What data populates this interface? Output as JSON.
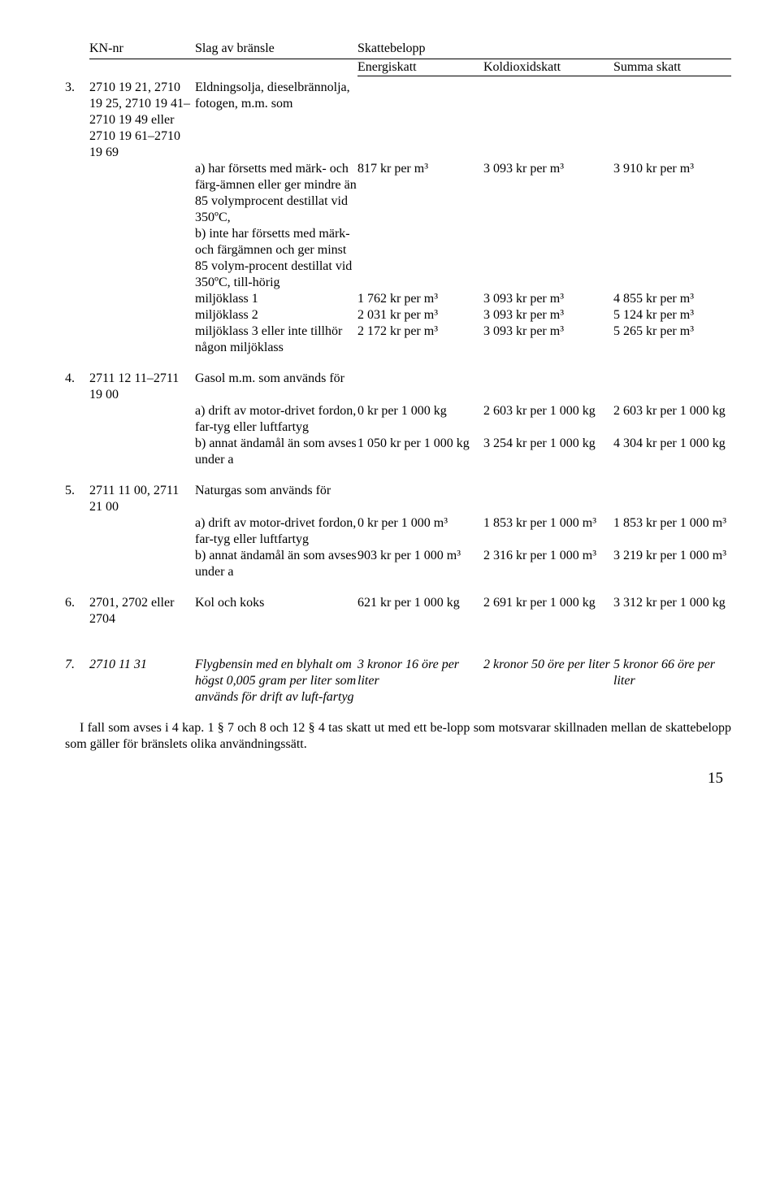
{
  "headers": {
    "kn": "KN-nr",
    "slag": "Slag av bränsle",
    "skattebelopp": "Skattebelopp",
    "energiskatt": "Energiskatt",
    "koldioxidskatt": "Koldioxidskatt",
    "summa": "Summa skatt"
  },
  "rows": {
    "r3": {
      "nr": "3.",
      "kn": "2710 19 21, 2710 19 25, 2710 19 41–2710 19 49 eller 2710 19 61–2710 19 69",
      "slag": "Eldningsolja, dieselbrännolja, fotogen, m.m. som",
      "sub": [
        {
          "slag": "a) har försetts med märk- och färg-ämnen eller ger mindre än 85 volymprocent destillat vid 350ºC,",
          "e": "817 kr per m³",
          "k": "3 093 kr per m³",
          "s": "3 910 kr per m³"
        },
        {
          "slag": "b) inte har försetts med märk- och färgämnen och ger minst 85 volym-procent destillat vid 350ºC, till-hörig",
          "e": "",
          "k": "",
          "s": ""
        },
        {
          "slag": "miljöklass 1",
          "e": "1 762 kr per m³",
          "k": "3 093 kr per m³",
          "s": "4 855 kr per m³"
        },
        {
          "slag": "miljöklass 2",
          "e": "2 031 kr per m³",
          "k": "3 093 kr per m³",
          "s": "5 124 kr per m³"
        },
        {
          "slag": "miljöklass 3 eller inte tillhör någon miljöklass",
          "e": "2 172 kr per m³",
          "k": "3 093 kr per m³",
          "s": "5 265 kr per m³"
        }
      ]
    },
    "r4": {
      "nr": "4.",
      "kn": "2711 12 11–2711 19 00",
      "slag": "Gasol m.m. som används för",
      "sub": [
        {
          "slag": "a) drift av motor-drivet fordon, far-tyg eller luftfartyg",
          "e": "0 kr per 1 000 kg",
          "k": "2 603 kr per 1 000 kg",
          "s": "2 603 kr per 1 000 kg"
        },
        {
          "slag": "b) annat ändamål än som avses under a",
          "e": "1 050 kr per 1 000 kg",
          "k": "3 254 kr per 1 000 kg",
          "s": "4 304 kr per 1 000 kg"
        }
      ]
    },
    "r5": {
      "nr": "5.",
      "kn": "2711 11 00, 2711 21 00",
      "slag": "Naturgas som används för",
      "sub": [
        {
          "slag": "a) drift av motor-drivet fordon, far-tyg eller luftfartyg",
          "e": "0 kr per 1 000 m³",
          "k": "1 853 kr per 1 000 m³",
          "s": "1 853 kr per 1 000 m³"
        },
        {
          "slag": "b) annat ändamål än som avses under a",
          "e": "903 kr per 1 000 m³",
          "k": "2 316 kr per 1 000 m³",
          "s": "3 219 kr per 1 000 m³"
        }
      ]
    },
    "r6": {
      "nr": "6.",
      "kn": "2701, 2702 eller 2704",
      "slag": "Kol och koks",
      "e": "621 kr per 1 000 kg",
      "k": "2 691 kr per 1 000 kg",
      "s": "3 312 kr per 1 000 kg"
    },
    "r7": {
      "nr": "7.",
      "kn": "2710 11 31",
      "slag": "Flygbensin med en blyhalt om högst 0,005 gram per liter som används för drift av luft-fartyg",
      "e": "3 kronor 16 öre per liter",
      "k": "2 kronor 50 öre per liter",
      "s": "5 kronor 66 öre per liter"
    }
  },
  "footer_para": "I fall som avses i 4 kap. 1 § 7 och 8 och 12 § 4 tas skatt ut med ett be-lopp som motsvarar skillnaden mellan de skattebelopp som gäller för bränslets olika användningssätt.",
  "page_number": "15"
}
